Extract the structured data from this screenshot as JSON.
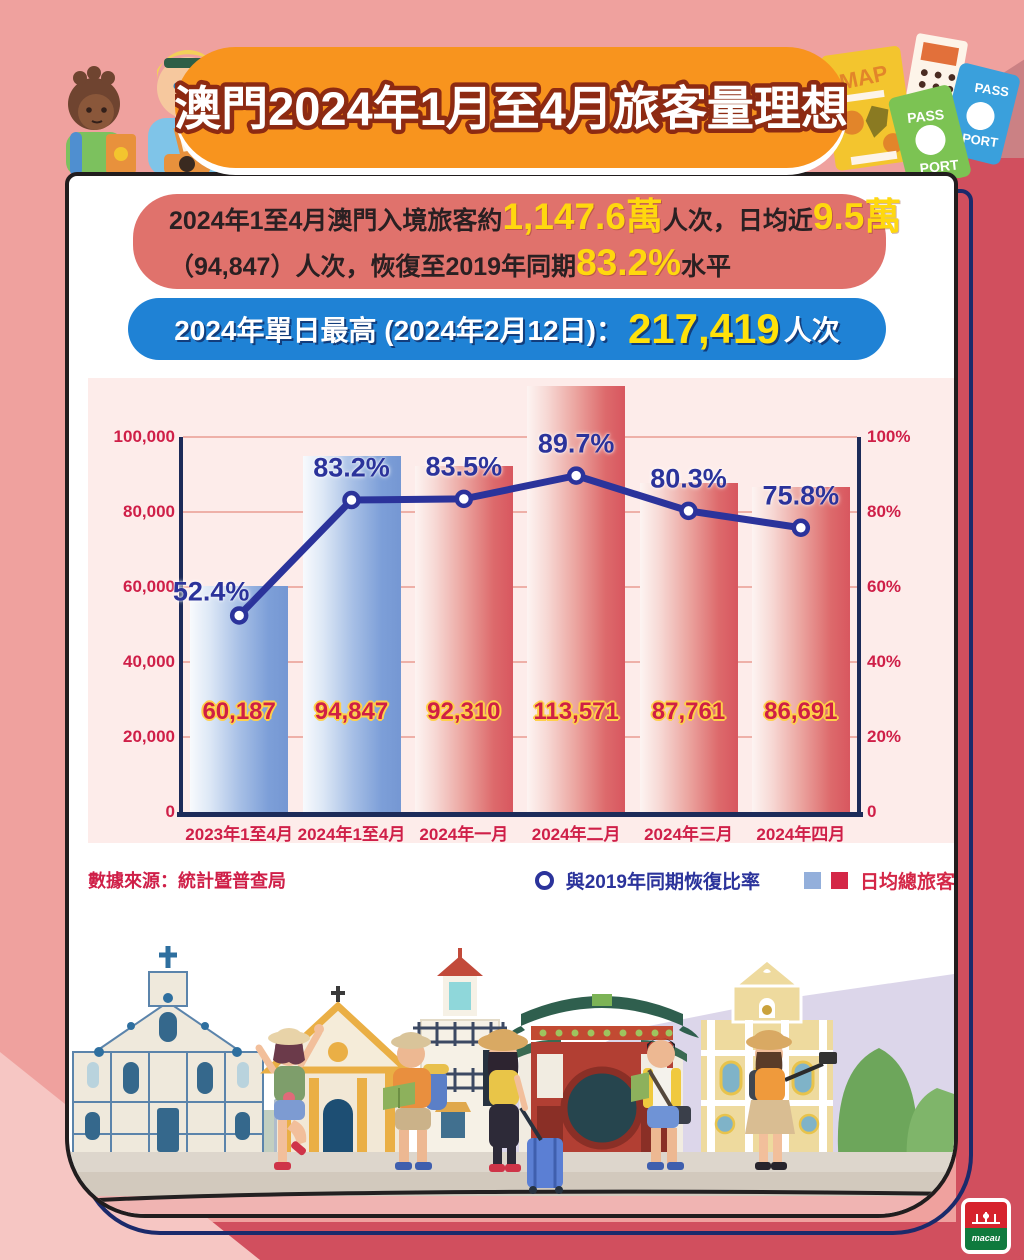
{
  "header": {
    "title": "澳門2024年1月至4月旅客量理想",
    "decor": {
      "map_label": "MAP",
      "passport_word1": "PASS",
      "passport_word2": "PORT"
    }
  },
  "summary_box": {
    "line1_parts": [
      {
        "text": "2024年1至4月澳門入境旅客約",
        "highlight": false
      },
      {
        "text": "1,147.6萬",
        "highlight": true
      },
      {
        "text": "人次，日均近",
        "highlight": false
      },
      {
        "text": "9.5萬",
        "highlight": true
      }
    ],
    "line2_parts": [
      {
        "text": "（94,847）人次，恢復至2019年同期",
        "highlight": false
      },
      {
        "text": "83.2%",
        "highlight": true
      },
      {
        "text": "水平",
        "highlight": false
      }
    ]
  },
  "record_box": {
    "prefix": "2024年單日最高 (2024年2月12日)：",
    "value": "217,419",
    "suffix": "人次"
  },
  "chart_data": {
    "type": "bar+line",
    "categories": [
      "2023年1至4月",
      "2024年1至4月",
      "2024年一月",
      "2024年二月",
      "2024年三月",
      "2024年四月"
    ],
    "series": [
      {
        "name": "日均總旅客",
        "type": "bar",
        "values": [
          60187,
          94847,
          92310,
          113571,
          87761,
          86691
        ],
        "value_labels": [
          "60,187",
          "94,847",
          "92,310",
          "113,571",
          "87,761",
          "86,691"
        ],
        "bar_styles": [
          "blue",
          "blue",
          "red",
          "red",
          "red",
          "red"
        ]
      },
      {
        "name": "與2019年同期恢復比率",
        "type": "line",
        "values": [
          52.4,
          83.2,
          83.5,
          89.7,
          80.3,
          75.8
        ],
        "point_labels": [
          "52.4%",
          "83.2%",
          "83.5%",
          "89.7%",
          "80.3%",
          "75.8%"
        ]
      }
    ],
    "left_axis": {
      "max": 100000,
      "tick_values": [
        0,
        20000,
        40000,
        60000,
        80000,
        100000
      ],
      "tick_labels": [
        "0",
        "20,000",
        "40,000",
        "60,000",
        "80,000",
        "100,000"
      ]
    },
    "right_axis": {
      "max": 100,
      "tick_values": [
        0,
        20,
        40,
        60,
        80,
        100
      ],
      "tick_labels": [
        "0",
        "20%",
        "40%",
        "60%",
        "80%",
        "100%"
      ]
    },
    "grid": true,
    "legend_position": "bottom-right"
  },
  "footer": {
    "source": "數據來源：統計暨普查局",
    "legend_line_label": "與2019年同期恢復比率",
    "legend_bar_label": "日均總旅客"
  },
  "logo": {
    "text": "macau"
  },
  "colors": {
    "background_pink": "#efa19e",
    "background_red": "#d14f5e",
    "banner_orange": "#f8941e",
    "summary_box_red": "#e0726c",
    "record_box_blue": "#1f82d5",
    "highlight_yellow": "#ffd80e",
    "chart_panel_pink": "#fdecea",
    "axis_navy": "#1c2b59",
    "tick_crimson": "#cf1f48",
    "bar_blue": "#7d9fd8",
    "bar_red": "#d8575f",
    "line_navy": "#2b339b",
    "legend_blue": "#93afdb",
    "legend_red": "#d42747"
  }
}
